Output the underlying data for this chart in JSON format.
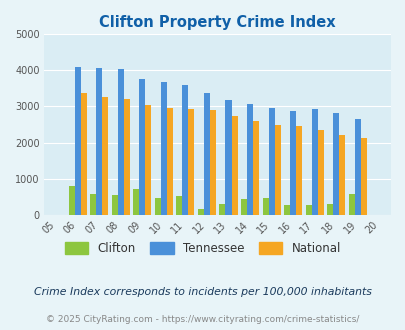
{
  "title": "Clifton Property Crime Index",
  "years": [
    "05",
    "06",
    "07",
    "08",
    "09",
    "10",
    "11",
    "12",
    "13",
    "14",
    "15",
    "16",
    "17",
    "18",
    "19",
    "20"
  ],
  "clifton": [
    0,
    800,
    580,
    550,
    720,
    470,
    540,
    170,
    310,
    440,
    480,
    280,
    280,
    320,
    570,
    0
  ],
  "tennessee": [
    0,
    4100,
    4070,
    4040,
    3770,
    3660,
    3590,
    3370,
    3170,
    3070,
    2960,
    2880,
    2940,
    2830,
    2640,
    0
  ],
  "national": [
    0,
    3360,
    3250,
    3210,
    3050,
    2960,
    2920,
    2890,
    2740,
    2600,
    2490,
    2450,
    2360,
    2200,
    2130,
    0
  ],
  "clifton_color": "#8dc63f",
  "tennessee_color": "#4a90d9",
  "national_color": "#f5a623",
  "fig_bg_color": "#e8f4f8",
  "plot_bg_color": "#daedf4",
  "title_color": "#1060a8",
  "grid_color": "#ffffff",
  "ylim": [
    0,
    5000
  ],
  "yticks": [
    0,
    1000,
    2000,
    3000,
    4000,
    5000
  ],
  "footnote1": "Crime Index corresponds to incidents per 100,000 inhabitants",
  "footnote2": "© 2025 CityRating.com - https://www.cityrating.com/crime-statistics/",
  "legend_labels": [
    "Clifton",
    "Tennessee",
    "National"
  ],
  "footnote1_color": "#1a3a5c",
  "footnote2_color": "#888888"
}
